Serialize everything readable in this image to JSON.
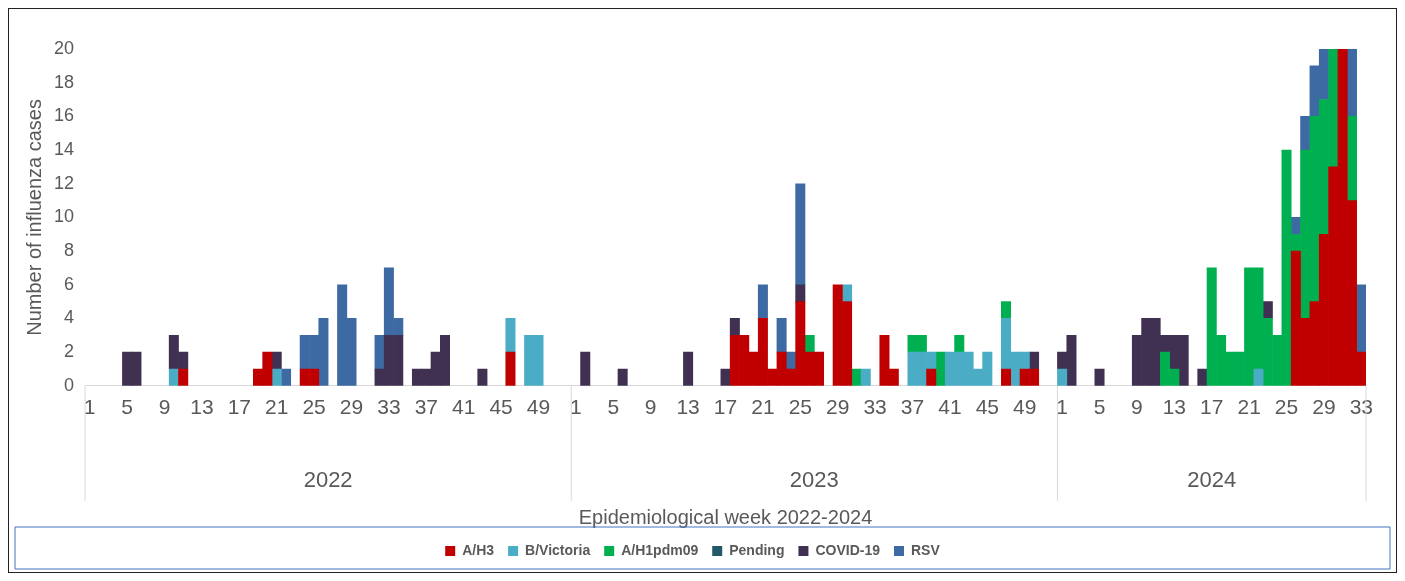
{
  "chart_data": {
    "type": "bar",
    "stacked": true,
    "xlabel": "Epidemiological week 2022-2024",
    "ylabel": "Number of influenza cases",
    "categories": [
      "1",
      null,
      null,
      null,
      "5",
      null,
      null,
      null,
      "9",
      null,
      null,
      null,
      "13",
      null,
      null,
      null,
      "17",
      null,
      null,
      null,
      "21",
      null,
      null,
      null,
      "25",
      null,
      null,
      null,
      "29",
      null,
      null,
      null,
      "33",
      null,
      null,
      null,
      "37",
      null,
      null,
      null,
      "41",
      null,
      null,
      null,
      "45",
      null,
      null,
      null,
      "49",
      null,
      null,
      null,
      "1",
      null,
      null,
      null,
      "5",
      null,
      null,
      null,
      "9",
      null,
      null,
      null,
      "13",
      null,
      null,
      null,
      "17",
      null,
      null,
      null,
      "21",
      null,
      null,
      null,
      "25",
      null,
      null,
      null,
      "29",
      null,
      null,
      null,
      "33",
      null,
      null,
      null,
      "37",
      null,
      null,
      null,
      "41",
      null,
      null,
      null,
      "45",
      null,
      null,
      null,
      "49",
      null,
      null,
      null,
      "1",
      null,
      null,
      null,
      "5",
      null,
      null,
      null,
      "9",
      null,
      null,
      null,
      "13",
      null,
      null,
      null,
      "17",
      null,
      null,
      null,
      "21",
      null,
      null,
      null,
      "25",
      null,
      null,
      null,
      "29",
      null,
      null,
      null,
      "33"
    ],
    "annotations": [
      "2022",
      "2023",
      "2024"
    ],
    "ylim": [
      0,
      20
    ],
    "yticks": [
      0,
      2,
      4,
      6,
      8,
      10,
      12,
      14,
      16,
      18,
      20
    ],
    "grid": false,
    "legend": "bottom",
    "series": [
      {
        "name": "A/H3",
        "color": "#c00000",
        "values": [
          null,
          null,
          null,
          null,
          null,
          null,
          null,
          null,
          null,
          null,
          1,
          null,
          null,
          null,
          null,
          null,
          null,
          null,
          1,
          2,
          null,
          null,
          null,
          1,
          1,
          null,
          null,
          null,
          null,
          null,
          null,
          null,
          null,
          null,
          null,
          null,
          null,
          null,
          null,
          null,
          null,
          null,
          null,
          null,
          null,
          2,
          null,
          null,
          null,
          null,
          null,
          null,
          null,
          null,
          null,
          null,
          null,
          null,
          null,
          null,
          null,
          null,
          null,
          null,
          null,
          null,
          null,
          null,
          null,
          3,
          3,
          2,
          4,
          1,
          2,
          1,
          5,
          2,
          2,
          null,
          6,
          5,
          null,
          null,
          null,
          3,
          1,
          null,
          null,
          null,
          1,
          null,
          null,
          null,
          null,
          null,
          null,
          null,
          1,
          null,
          1,
          1,
          null,
          null,
          null,
          null,
          null,
          null,
          null,
          null,
          null,
          null,
          null,
          null,
          null,
          null,
          null,
          null,
          null,
          null,
          null,
          null,
          null,
          null,
          null,
          null,
          null,
          null,
          null,
          8,
          4,
          5,
          9,
          13,
          20,
          11,
          2
        ]
      },
      {
        "name": "B/Victoria",
        "color": "#4bacc6",
        "values": [
          null,
          null,
          null,
          null,
          null,
          null,
          null,
          null,
          null,
          1,
          null,
          null,
          null,
          null,
          null,
          null,
          null,
          null,
          null,
          null,
          1,
          null,
          null,
          null,
          null,
          null,
          null,
          null,
          null,
          null,
          null,
          null,
          null,
          null,
          null,
          null,
          null,
          null,
          null,
          null,
          null,
          null,
          null,
          null,
          null,
          2,
          null,
          3,
          3,
          null,
          null,
          null,
          null,
          null,
          null,
          null,
          null,
          null,
          null,
          null,
          null,
          null,
          null,
          null,
          null,
          null,
          null,
          null,
          null,
          null,
          null,
          null,
          null,
          null,
          null,
          null,
          null,
          null,
          null,
          null,
          null,
          1,
          null,
          1,
          null,
          null,
          null,
          null,
          2,
          2,
          1,
          null,
          2,
          2,
          2,
          1,
          2,
          null,
          3,
          2,
          1,
          null,
          null,
          null,
          1,
          null,
          null,
          null,
          null,
          null,
          null,
          null,
          null,
          null,
          null,
          null,
          null,
          null,
          null,
          null,
          null,
          null,
          null,
          null,
          null,
          1,
          null,
          null,
          null,
          null,
          null,
          null,
          null,
          null,
          null,
          null,
          null
        ]
      },
      {
        "name": "A/H1pdm09",
        "color": "#00b050",
        "values": [
          null,
          null,
          null,
          null,
          null,
          null,
          null,
          null,
          null,
          null,
          null,
          null,
          null,
          null,
          null,
          null,
          null,
          null,
          null,
          null,
          null,
          null,
          null,
          null,
          null,
          null,
          null,
          null,
          null,
          null,
          null,
          null,
          null,
          null,
          null,
          null,
          null,
          null,
          null,
          null,
          null,
          null,
          null,
          null,
          null,
          null,
          null,
          null,
          null,
          null,
          null,
          null,
          null,
          null,
          null,
          null,
          null,
          null,
          null,
          null,
          null,
          null,
          null,
          null,
          null,
          null,
          null,
          null,
          null,
          null,
          null,
          null,
          null,
          null,
          null,
          null,
          null,
          1,
          null,
          null,
          null,
          null,
          1,
          null,
          null,
          null,
          null,
          null,
          1,
          1,
          null,
          2,
          null,
          1,
          null,
          null,
          null,
          null,
          1,
          null,
          null,
          null,
          null,
          null,
          null,
          null,
          null,
          null,
          null,
          null,
          null,
          null,
          null,
          null,
          null,
          2,
          1,
          null,
          null,
          null,
          7,
          3,
          2,
          2,
          7,
          6,
          4,
          3,
          14,
          1,
          10,
          11,
          8,
          7,
          null,
          5,
          null
        ]
      },
      {
        "name": "Pending",
        "color": "#215968",
        "values": [
          null,
          null,
          null,
          null,
          null,
          null,
          null,
          null,
          null,
          null,
          null,
          null,
          null,
          null,
          null,
          null,
          null,
          null,
          null,
          null,
          null,
          null,
          null,
          null,
          null,
          null,
          null,
          null,
          null,
          null,
          null,
          null,
          null,
          null,
          null,
          null,
          null,
          null,
          null,
          null,
          null,
          null,
          null,
          null,
          null,
          null,
          null,
          null,
          null,
          null,
          null,
          null,
          null,
          null,
          null,
          null,
          null,
          null,
          null,
          null,
          null,
          null,
          null,
          null,
          null,
          null,
          null,
          null,
          null,
          null,
          null,
          null,
          null,
          null,
          null,
          null,
          null,
          null,
          null,
          null,
          null,
          null,
          null,
          null,
          null,
          null,
          null,
          null,
          null,
          null,
          null,
          null,
          null,
          null,
          null,
          null,
          null,
          null,
          null,
          null,
          null,
          null,
          null,
          null,
          null,
          null,
          null,
          null,
          null,
          null,
          null,
          null,
          null,
          null,
          null,
          null,
          null,
          null,
          null,
          null,
          null,
          null,
          null,
          null,
          null,
          null,
          null,
          null,
          null,
          null,
          null,
          null,
          null,
          null,
          null,
          null,
          null
        ]
      },
      {
        "name": "COVID-19",
        "color": "#403152",
        "values": [
          null,
          null,
          null,
          null,
          2,
          2,
          null,
          null,
          null,
          2,
          1,
          null,
          null,
          null,
          null,
          null,
          null,
          null,
          null,
          null,
          1,
          null,
          null,
          null,
          null,
          null,
          null,
          null,
          null,
          null,
          null,
          1,
          3,
          3,
          null,
          1,
          1,
          2,
          3,
          null,
          null,
          null,
          1,
          null,
          null,
          null,
          null,
          null,
          null,
          null,
          null,
          null,
          null,
          2,
          null,
          null,
          null,
          1,
          null,
          null,
          null,
          null,
          null,
          null,
          2,
          null,
          null,
          null,
          1,
          1,
          null,
          null,
          null,
          null,
          null,
          null,
          1,
          null,
          null,
          null,
          null,
          null,
          null,
          null,
          null,
          null,
          null,
          null,
          null,
          null,
          null,
          null,
          null,
          null,
          null,
          null,
          null,
          null,
          null,
          null,
          null,
          1,
          null,
          null,
          1,
          3,
          null,
          null,
          1,
          null,
          null,
          null,
          3,
          4,
          4,
          1,
          2,
          3,
          null,
          1,
          null,
          null,
          null,
          null,
          null,
          null,
          1,
          null,
          null,
          null,
          null,
          null,
          null,
          null,
          null,
          null,
          null
        ]
      },
      {
        "name": "RSV",
        "color": "#3e6aa3",
        "values": [
          null,
          null,
          null,
          null,
          null,
          null,
          null,
          null,
          null,
          null,
          null,
          null,
          null,
          null,
          null,
          null,
          null,
          null,
          null,
          null,
          null,
          1,
          null,
          2,
          2,
          4,
          null,
          6,
          4,
          null,
          null,
          2,
          4,
          1,
          null,
          null,
          null,
          null,
          null,
          null,
          null,
          null,
          null,
          null,
          null,
          null,
          null,
          null,
          null,
          null,
          null,
          null,
          null,
          null,
          null,
          null,
          null,
          null,
          null,
          null,
          null,
          null,
          null,
          null,
          null,
          null,
          null,
          null,
          null,
          null,
          null,
          null,
          2,
          null,
          2,
          1,
          6,
          null,
          null,
          null,
          null,
          null,
          null,
          null,
          null,
          null,
          null,
          null,
          null,
          null,
          null,
          null,
          null,
          null,
          null,
          null,
          null,
          null,
          null,
          null,
          null,
          null,
          null,
          null,
          null,
          null,
          null,
          null,
          null,
          null,
          null,
          null,
          null,
          null,
          null,
          null,
          null,
          null,
          null,
          null,
          null,
          null,
          null,
          null,
          null,
          null,
          null,
          null,
          null,
          1,
          2,
          3,
          3,
          null,
          null,
          4,
          4
        ]
      }
    ]
  }
}
